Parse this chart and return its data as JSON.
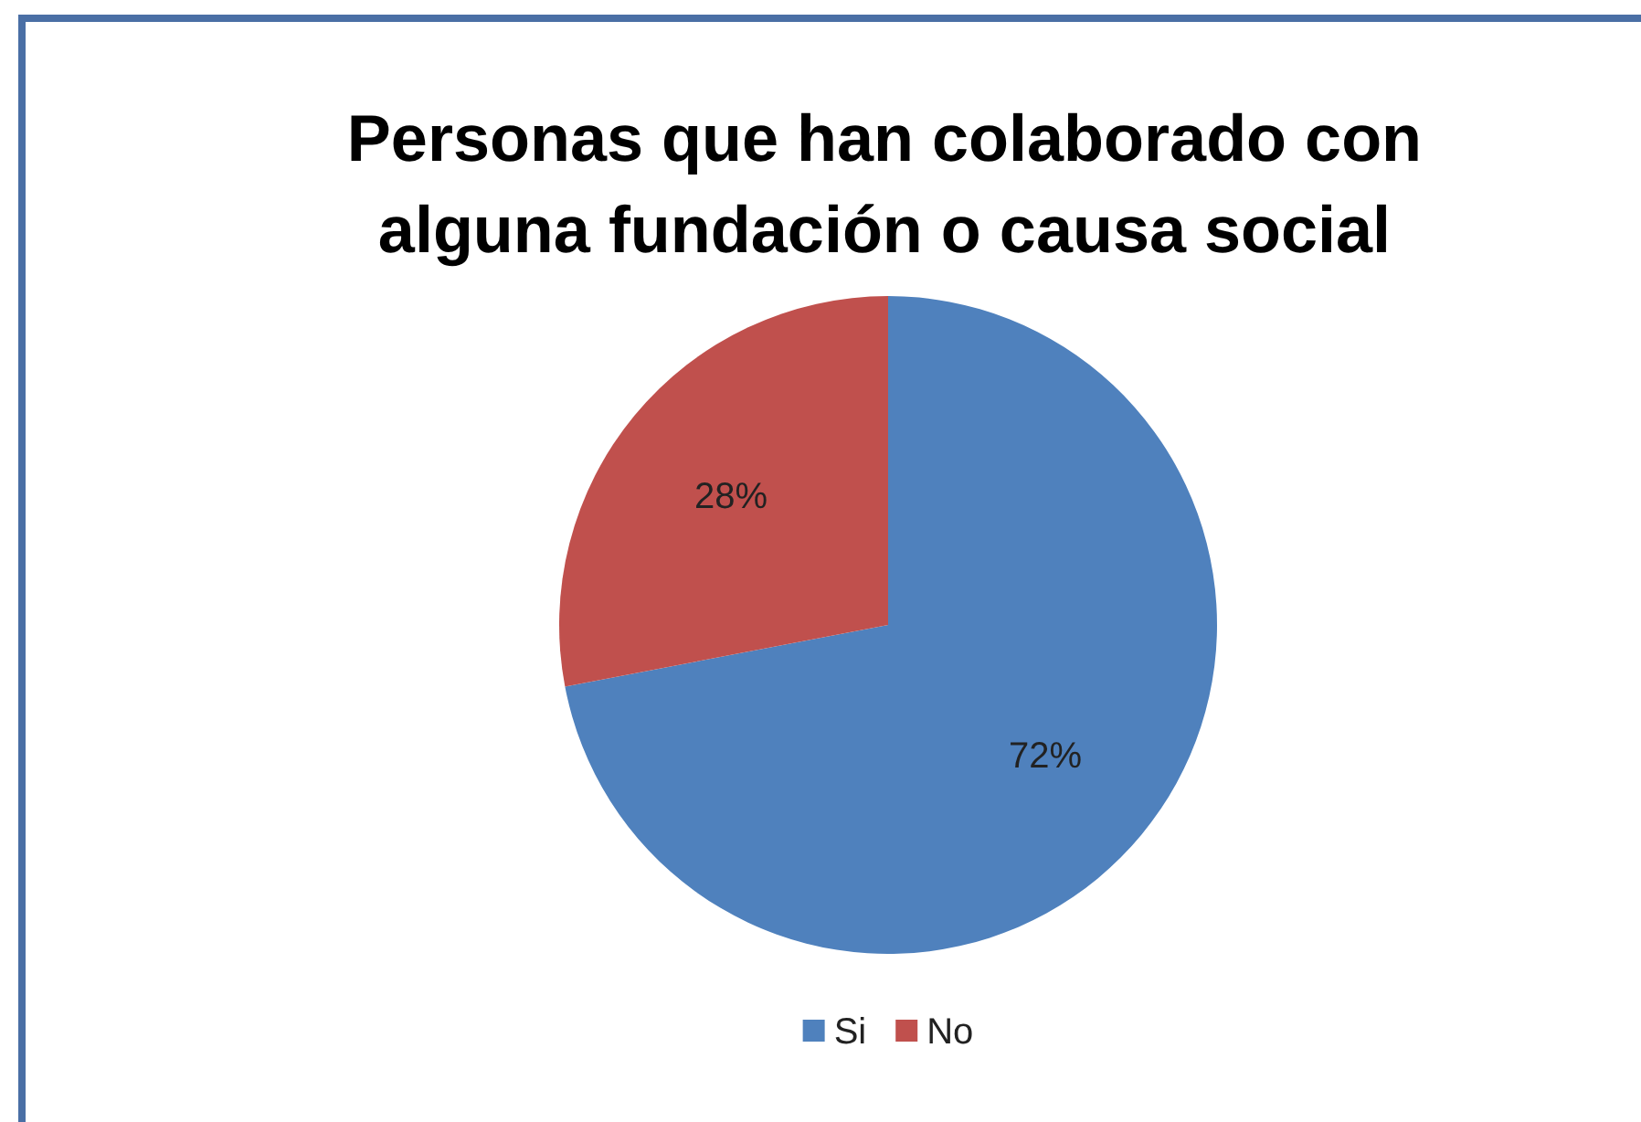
{
  "chart_data": {
    "type": "pie",
    "title": "Personas que han colaborado con alguna fundación o causa social",
    "categories": [
      "Si",
      "No"
    ],
    "values": [
      72,
      28
    ],
    "colors": [
      "#4f81bd",
      "#c0504d"
    ],
    "value_labels": [
      "72%",
      "28%"
    ],
    "legend": "bottom"
  }
}
